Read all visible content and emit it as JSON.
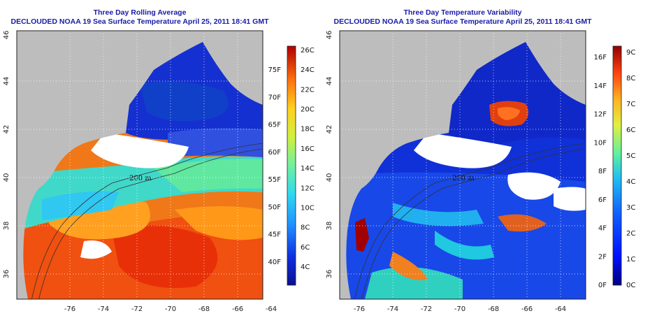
{
  "panels": [
    {
      "title": "Three Day Rolling Average",
      "subtitle": "DECLOUDED NOAA 19 Sea Surface Temperature April 25, 2011 18:41 GMT",
      "lon_ticks": [
        "-76",
        "-74",
        "-72",
        "-70",
        "-68",
        "-66",
        "-64"
      ],
      "lat_ticks": [
        "36",
        "38",
        "40",
        "42",
        "44",
        "46"
      ],
      "contour_label": "200 m",
      "colorbar": {
        "celsius": [
          "26C",
          "24C",
          "22C",
          "20C",
          "18C",
          "16C",
          "14C",
          "12C",
          "10C",
          "8C",
          "6C",
          "4C"
        ],
        "fahrenheit": [
          "75F",
          "70F",
          "65F",
          "60F",
          "55F",
          "50F",
          "45F",
          "40F"
        ]
      }
    },
    {
      "title": "Three Day Temperature Variability",
      "subtitle": "DECLOUDED NOAA 19 Sea Surface Temperature April 25, 2011 18:41 GMT",
      "lon_ticks": [
        "-76",
        "-74",
        "-72",
        "-70",
        "-68",
        "-66",
        "-64"
      ],
      "lat_ticks": [
        "36",
        "38",
        "40",
        "42",
        "44",
        "46"
      ],
      "contour_label": "200 m",
      "colorbar": {
        "celsius": [
          "9C",
          "8C",
          "7C",
          "6C",
          "5C",
          "4C",
          "3C",
          "2C",
          "1C",
          "0C"
        ],
        "fahrenheit": [
          "16F",
          "14F",
          "12F",
          "10F",
          "8F",
          "6F",
          "4F",
          "2F",
          "0F"
        ]
      }
    }
  ],
  "colors": {
    "land": "#bdbdbd",
    "title": "#1a1aa8",
    "cold": "#1030d0",
    "warm": "#e85010"
  }
}
